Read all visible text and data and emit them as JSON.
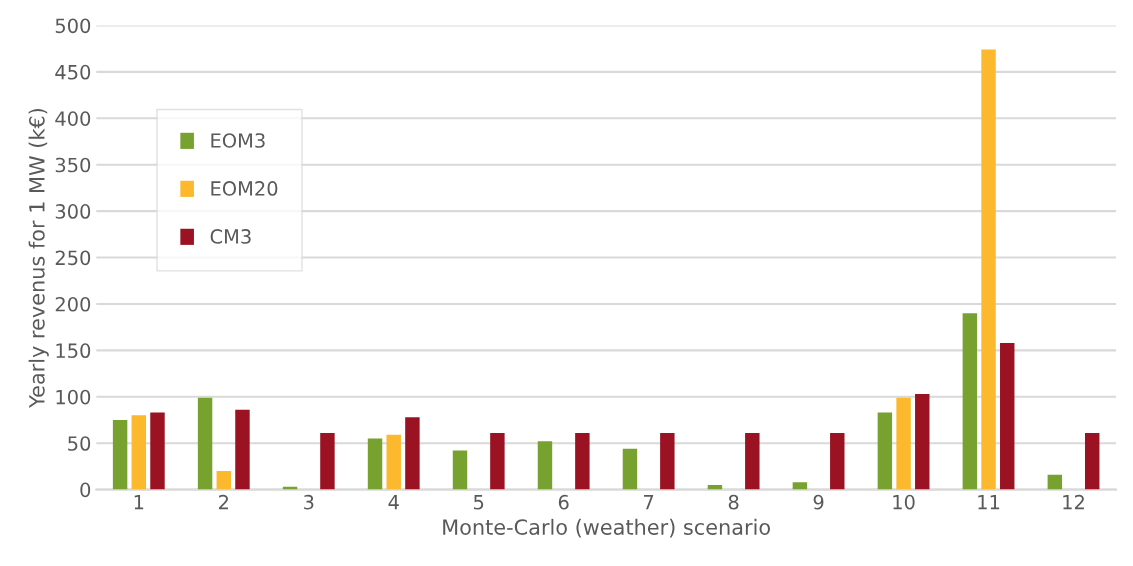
{
  "chart_data": {
    "type": "bar",
    "xlabel": "Monte-Carlo (weather) scenario",
    "ylabel": "Yearly revenus for 1 MW (k€)",
    "categories": [
      "1",
      "2",
      "3",
      "4",
      "5",
      "6",
      "7",
      "8",
      "9",
      "10",
      "11",
      "12"
    ],
    "series": [
      {
        "name": "EOM3",
        "color": "#78a22f",
        "values": [
          75,
          99,
          3,
          55,
          42,
          52,
          44,
          5,
          8,
          83,
          190,
          16
        ]
      },
      {
        "name": "EOM20",
        "color": "#fdb92e",
        "values": [
          80,
          20,
          null,
          59,
          null,
          null,
          null,
          null,
          null,
          99,
          474,
          null
        ]
      },
      {
        "name": "CM3",
        "color": "#9b1323",
        "values": [
          83,
          86,
          61,
          78,
          61,
          61,
          61,
          61,
          61,
          103,
          158,
          61
        ]
      }
    ],
    "ylim": [
      0,
      500
    ],
    "yticks": [
      0,
      50,
      100,
      150,
      200,
      250,
      300,
      350,
      400,
      450,
      500
    ],
    "grid": "y",
    "legend": "top left"
  }
}
